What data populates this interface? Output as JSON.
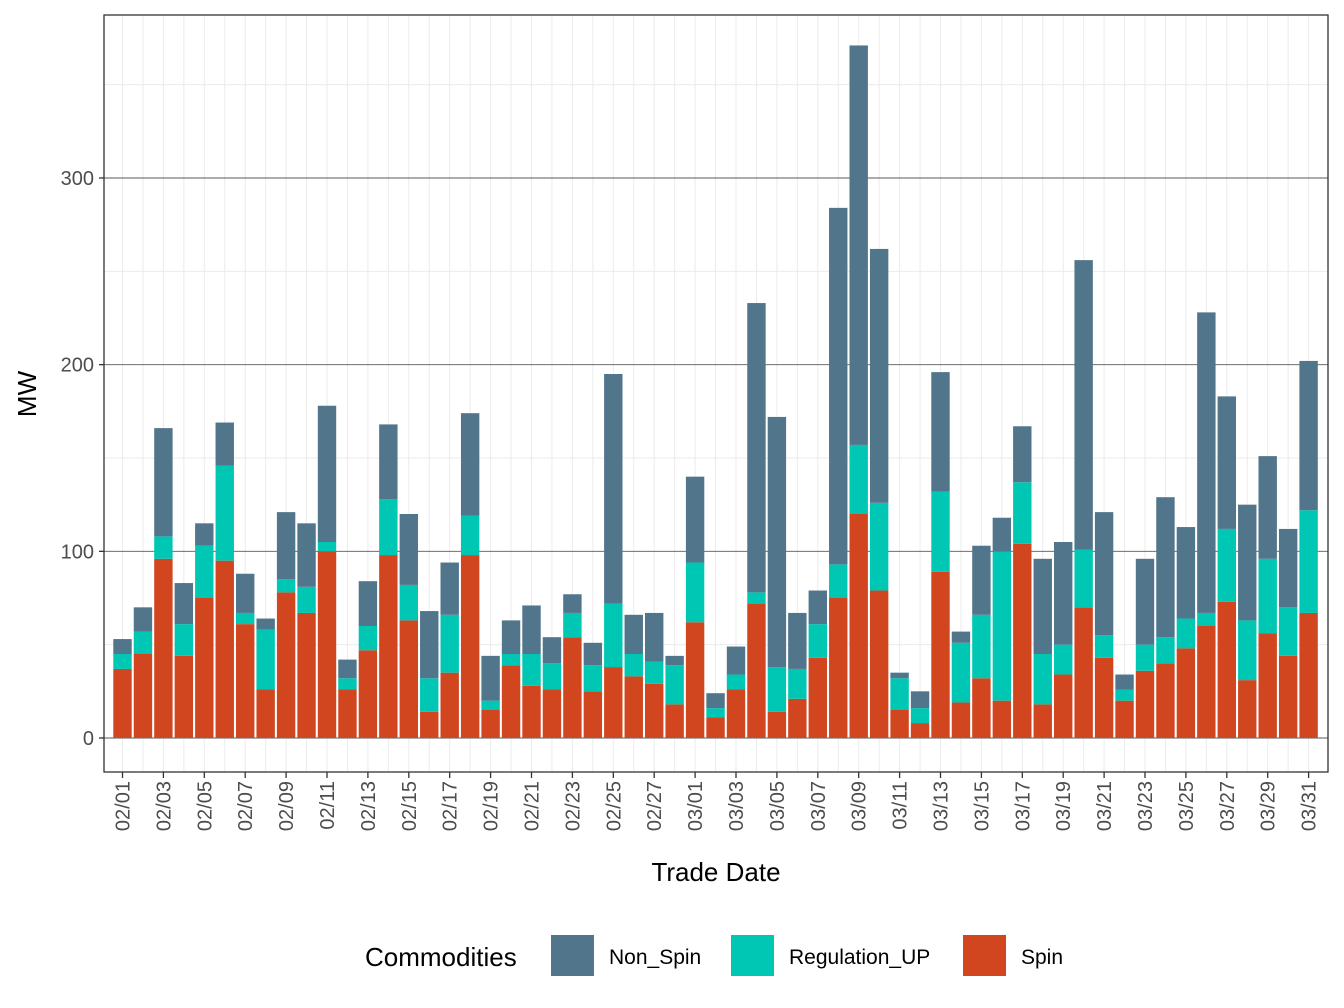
{
  "chart_data": {
    "type": "bar",
    "stacked": true,
    "title": "",
    "xlabel": "Trade Date",
    "ylabel": "MW",
    "ylim": [
      -18,
      383
    ],
    "yticks": [
      0,
      100,
      200,
      300
    ],
    "ytick_labels": [
      "0",
      "100",
      "200",
      "300"
    ],
    "grid": true,
    "legend_position": "bottom",
    "legend_title": "Commodities",
    "colors": {
      "Non_Spin": "#51758a",
      "Regulation_UP": "#00c7b3",
      "Spin": "#d2461f"
    },
    "categories": [
      "02/01",
      "02/02",
      "02/03",
      "02/04",
      "02/05",
      "02/06",
      "02/07",
      "02/08",
      "02/09",
      "02/10",
      "02/11",
      "02/12",
      "02/13",
      "02/14",
      "02/15",
      "02/16",
      "02/17",
      "02/18",
      "02/19",
      "02/20",
      "02/21",
      "02/22",
      "02/23",
      "02/24",
      "02/25",
      "02/26",
      "02/27",
      "02/28",
      "03/01",
      "03/02",
      "03/03",
      "03/04",
      "03/05",
      "03/06",
      "03/07",
      "03/08",
      "03/09",
      "03/10",
      "03/11",
      "03/12",
      "03/13",
      "03/14",
      "03/15",
      "03/16",
      "03/17",
      "03/18",
      "03/19",
      "03/20",
      "03/21",
      "03/22",
      "03/23",
      "03/24",
      "03/25",
      "03/26",
      "03/27",
      "03/28",
      "03/29",
      "03/30",
      "03/31"
    ],
    "tick_labels": [
      "02/01",
      "02/03",
      "02/05",
      "02/07",
      "02/09",
      "02/11",
      "02/13",
      "02/15",
      "02/17",
      "02/19",
      "02/21",
      "02/23",
      "02/25",
      "02/27",
      "03/01",
      "03/03",
      "03/05",
      "03/07",
      "03/09",
      "03/11",
      "03/13",
      "03/15",
      "03/17",
      "03/19",
      "03/21",
      "03/23",
      "03/25",
      "03/27",
      "03/29",
      "03/31"
    ],
    "series": [
      {
        "name": "Spin",
        "values": [
          37,
          45,
          96,
          44,
          75,
          95,
          61,
          26,
          78,
          67,
          100,
          26,
          47,
          98,
          63,
          14,
          35,
          98,
          15,
          39,
          28,
          26,
          54,
          25,
          38,
          33,
          29,
          18,
          62,
          11,
          26,
          72,
          14,
          21,
          43,
          75,
          120,
          79,
          15,
          8,
          89,
          19,
          32,
          20,
          104,
          18,
          34,
          70,
          43,
          20,
          36,
          40,
          48,
          60,
          73,
          31,
          56,
          44,
          67
        ]
      },
      {
        "name": "Regulation_UP",
        "values": [
          8,
          12,
          12,
          17,
          28,
          51,
          6,
          32,
          7,
          14,
          5,
          6,
          13,
          30,
          19,
          18,
          31,
          21,
          5,
          6,
          17,
          14,
          13,
          14,
          34,
          12,
          12,
          21,
          32,
          5,
          8,
          6,
          24,
          16,
          18,
          18,
          37,
          47,
          17,
          8,
          43,
          32,
          34,
          80,
          33,
          27,
          16,
          31,
          12,
          6,
          14,
          14,
          16,
          7,
          39,
          32,
          40,
          26,
          55
        ]
      },
      {
        "name": "Non_Spin",
        "values": [
          8,
          13,
          58,
          22,
          12,
          23,
          21,
          6,
          36,
          34,
          73,
          10,
          24,
          40,
          38,
          36,
          28,
          55,
          24,
          18,
          26,
          14,
          10,
          12,
          123,
          21,
          26,
          5,
          46,
          8,
          15,
          155,
          134,
          30,
          18,
          191,
          214,
          136,
          3,
          9,
          64,
          6,
          37,
          18,
          30,
          51,
          55,
          155,
          66,
          8,
          46,
          75,
          49,
          161,
          71,
          62,
          55,
          42,
          80
        ]
      }
    ]
  }
}
